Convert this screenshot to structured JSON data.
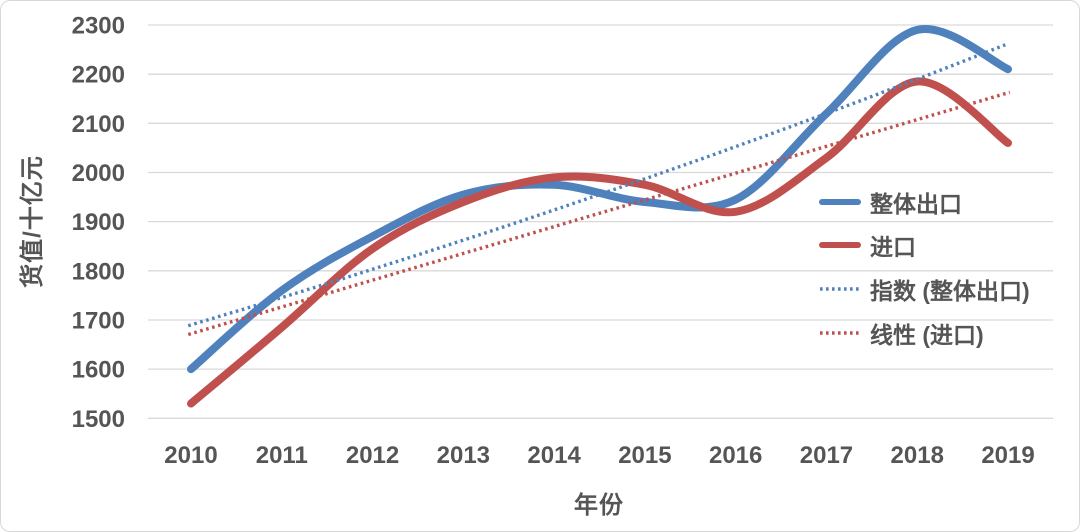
{
  "chart_data": {
    "type": "line",
    "title": "",
    "xlabel": "年份",
    "ylabel": "货值/十亿元",
    "x": [
      2010,
      2011,
      2012,
      2013,
      2014,
      2015,
      2016,
      2017,
      2018,
      2019
    ],
    "ylim": [
      1500,
      2300
    ],
    "ytick_step": 100,
    "yticks": [
      1500,
      1600,
      1700,
      1800,
      1900,
      2000,
      2100,
      2200,
      2300
    ],
    "grid": true,
    "legend_position": "right",
    "series": [
      {
        "name": "整体出口",
        "color": "#4F81BD",
        "style": "solid",
        "values": [
          1600,
          1760,
          1870,
          1955,
          1975,
          1940,
          1945,
          2120,
          2290,
          2210
        ]
      },
      {
        "name": "进口",
        "color": "#C0504D",
        "style": "solid",
        "values": [
          1530,
          1685,
          1845,
          1940,
          1990,
          1975,
          1920,
          2030,
          2185,
          2060
        ]
      },
      {
        "name": "指数 (整体出口)",
        "color": "#4F81BD",
        "style": "dotted",
        "fit": "exponential",
        "start_value": 1690,
        "end_value": 2262
      },
      {
        "name": "线性 (进口)",
        "color": "#C0504D",
        "style": "dotted",
        "fit": "linear",
        "start_value": 1672,
        "end_value": 2162
      }
    ],
    "colors": {
      "grid": "#d9d9d9",
      "text": "#555555",
      "background": "#ffffff"
    }
  }
}
